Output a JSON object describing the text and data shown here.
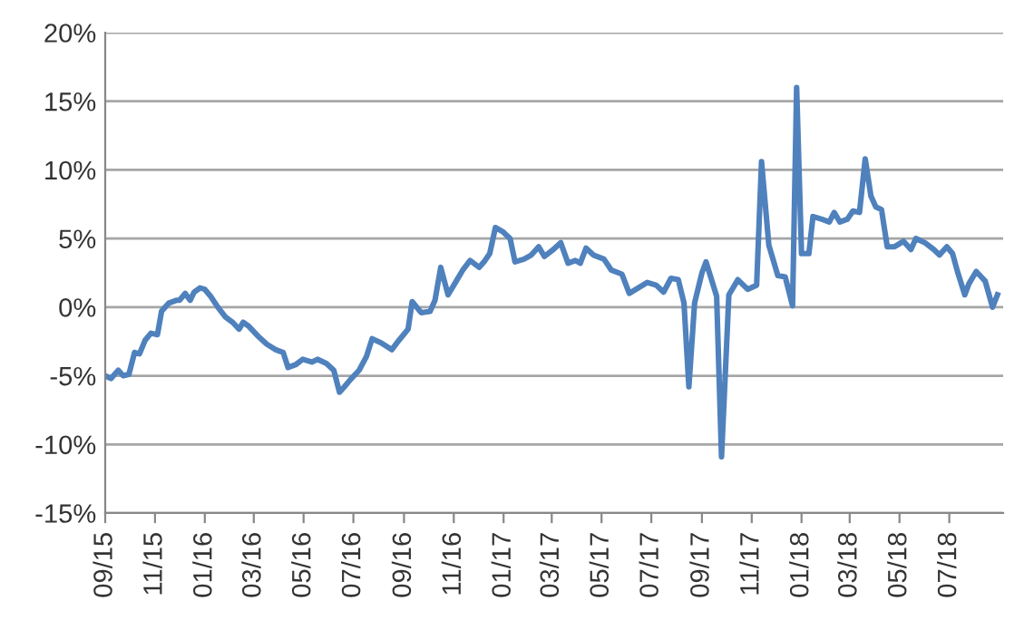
{
  "chart_data": {
    "type": "line",
    "x": [
      "2015-09-01",
      "2015-09-08",
      "2015-09-17",
      "2015-09-23",
      "2015-09-30",
      "2015-10-07",
      "2015-10-13",
      "2015-10-20",
      "2015-10-27",
      "2015-11-04",
      "2015-11-09",
      "2015-11-18",
      "2015-11-27",
      "2015-12-01",
      "2015-12-08",
      "2015-12-14",
      "2015-12-19",
      "2015-12-26",
      "2016-01-01",
      "2016-01-08",
      "2016-01-17",
      "2016-01-26",
      "2016-02-04",
      "2016-02-12",
      "2016-02-17",
      "2016-02-24",
      "2016-03-06",
      "2016-03-17",
      "2016-03-28",
      "2016-04-06",
      "2016-04-12",
      "2016-04-21",
      "2016-04-30",
      "2016-05-11",
      "2016-05-18",
      "2016-05-29",
      "2016-06-07",
      "2016-06-14",
      "2016-06-20",
      "2016-06-27",
      "2016-07-08",
      "2016-07-17",
      "2016-07-24",
      "2016-08-04",
      "2016-08-17",
      "2016-08-26",
      "2016-09-06",
      "2016-09-11",
      "2016-09-22",
      "2016-10-03",
      "2016-10-09",
      "2016-10-16",
      "2016-10-25",
      "2016-11-05",
      "2016-11-12",
      "2016-11-21",
      "2016-12-02",
      "2016-12-08",
      "2016-12-15",
      "2016-12-22",
      "2016-12-31",
      "2017-01-09",
      "2017-01-15",
      "2017-01-26",
      "2017-02-04",
      "2017-02-13",
      "2017-02-20",
      "2017-03-03",
      "2017-03-12",
      "2017-03-21",
      "2017-03-30",
      "2017-04-05",
      "2017-04-12",
      "2017-04-21",
      "2017-05-04",
      "2017-05-13",
      "2017-05-26",
      "2017-06-04",
      "2017-06-15",
      "2017-06-26",
      "2017-07-07",
      "2017-07-16",
      "2017-07-25",
      "2017-08-03",
      "2017-08-10",
      "2017-08-16",
      "2017-08-23",
      "2017-09-01",
      "2017-09-06",
      "2017-09-19",
      "2017-09-25",
      "2017-10-04",
      "2017-10-15",
      "2017-10-27",
      "2017-11-07",
      "2017-11-13",
      "2017-11-22",
      "2017-12-03",
      "2017-12-12",
      "2017-12-21",
      "2017-12-26",
      "2018-01-01",
      "2018-01-10",
      "2018-01-15",
      "2018-01-26",
      "2018-02-04",
      "2018-02-10",
      "2018-02-17",
      "2018-02-26",
      "2018-03-05",
      "2018-03-13",
      "2018-03-20",
      "2018-03-27",
      "2018-04-02",
      "2018-04-09",
      "2018-04-16",
      "2018-04-25",
      "2018-05-06",
      "2018-05-15",
      "2018-05-21",
      "2018-06-01",
      "2018-06-12",
      "2018-06-19",
      "2018-06-28",
      "2018-07-05",
      "2018-07-11",
      "2018-07-20",
      "2018-07-25",
      "2018-08-03",
      "2018-08-14",
      "2018-08-23",
      "2018-08-29"
    ],
    "series": [
      {
        "color": "#4f81bd",
        "values": [
          -5.0,
          -5.2,
          -4.6,
          -5.0,
          -4.9,
          -3.3,
          -3.4,
          -2.4,
          -1.9,
          -2.0,
          -0.3,
          0.3,
          0.5,
          0.5,
          1.0,
          0.5,
          1.1,
          1.4,
          1.3,
          0.8,
          0.0,
          -0.7,
          -1.1,
          -1.6,
          -1.1,
          -1.4,
          -2.1,
          -2.7,
          -3.1,
          -3.3,
          -4.4,
          -4.2,
          -3.8,
          -4.0,
          -3.8,
          -4.1,
          -4.6,
          -6.2,
          -5.8,
          -5.3,
          -4.6,
          -3.6,
          -2.3,
          -2.6,
          -3.1,
          -2.4,
          -1.6,
          0.4,
          -0.4,
          -0.3,
          0.5,
          2.9,
          0.9,
          2.0,
          2.7,
          3.4,
          2.9,
          3.3,
          3.9,
          5.8,
          5.5,
          5.0,
          3.3,
          3.5,
          3.8,
          4.4,
          3.7,
          4.2,
          4.7,
          3.2,
          3.4,
          3.2,
          4.3,
          3.8,
          3.5,
          2.7,
          2.4,
          1.0,
          1.4,
          1.8,
          1.6,
          1.1,
          2.1,
          2.0,
          0.3,
          -5.8,
          0.3,
          2.5,
          3.3,
          0.8,
          -10.9,
          0.9,
          2.0,
          1.3,
          1.6,
          10.6,
          4.5,
          2.3,
          2.2,
          0.1,
          16.0,
          3.9,
          3.9,
          6.6,
          6.4,
          6.2,
          6.9,
          6.2,
          6.4,
          7.0,
          6.9,
          10.8,
          8.1,
          7.3,
          7.1,
          4.4,
          4.4,
          4.8,
          4.2,
          5.0,
          4.7,
          4.2,
          3.8,
          4.4,
          3.9,
          2.6,
          0.9,
          1.7,
          2.6,
          1.9,
          0.0,
          0.9
        ]
      }
    ],
    "xlim": [
      "2015-09-01",
      "2018-09-05"
    ],
    "xticks": [
      {
        "value": "2015-09-01",
        "label": "09/15"
      },
      {
        "value": "2015-11-01",
        "label": "11/15"
      },
      {
        "value": "2016-01-01",
        "label": "01/16"
      },
      {
        "value": "2016-03-01",
        "label": "03/16"
      },
      {
        "value": "2016-05-01",
        "label": "05/16"
      },
      {
        "value": "2016-07-01",
        "label": "07/16"
      },
      {
        "value": "2016-09-01",
        "label": "09/16"
      },
      {
        "value": "2016-11-01",
        "label": "11/16"
      },
      {
        "value": "2017-01-01",
        "label": "01/17"
      },
      {
        "value": "2017-03-01",
        "label": "03/17"
      },
      {
        "value": "2017-05-01",
        "label": "05/17"
      },
      {
        "value": "2017-07-01",
        "label": "07/17"
      },
      {
        "value": "2017-09-01",
        "label": "09/17"
      },
      {
        "value": "2017-11-01",
        "label": "11/17"
      },
      {
        "value": "2018-01-01",
        "label": "01/18"
      },
      {
        "value": "2018-03-01",
        "label": "03/18"
      },
      {
        "value": "2018-05-01",
        "label": "05/18"
      },
      {
        "value": "2018-07-01",
        "label": "07/18"
      }
    ],
    "ylim": [
      -15,
      20
    ],
    "yticks": [
      {
        "value": -15,
        "label": "-15%"
      },
      {
        "value": -10,
        "label": "-10%"
      },
      {
        "value": -5,
        "label": "-5%"
      },
      {
        "value": 0,
        "label": "0%"
      },
      {
        "value": 5,
        "label": "5%"
      },
      {
        "value": 10,
        "label": "10%"
      },
      {
        "value": 15,
        "label": "15%"
      },
      {
        "value": 20,
        "label": "20%"
      }
    ],
    "grid": "y",
    "legend": false,
    "marker": "none",
    "line_style": "solid"
  }
}
